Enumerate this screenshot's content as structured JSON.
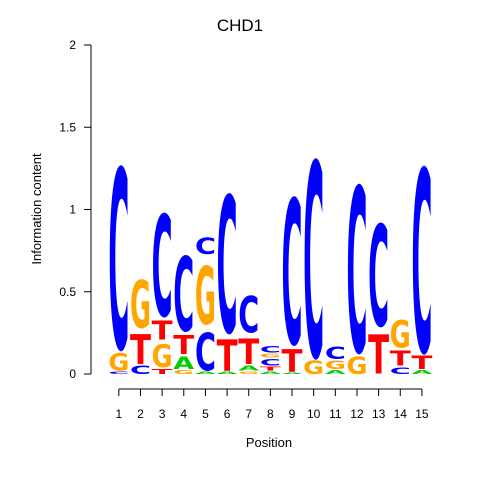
{
  "chart_data": {
    "type": "sequence-logo",
    "title": "CHD1",
    "xlabel": "Position",
    "ylabel": "Information content",
    "ylim": [
      0,
      2
    ],
    "yticks": [
      0,
      0.5,
      1,
      1.5,
      2
    ],
    "ytick_labels": [
      "0",
      "0.5",
      "1",
      "1.5",
      "2"
    ],
    "positions": [
      "1",
      "2",
      "3",
      "4",
      "5",
      "6",
      "7",
      "8",
      "9",
      "10",
      "11",
      "12",
      "13",
      "14",
      "15"
    ],
    "colors": {
      "A": "#00cc00",
      "C": "#0000ff",
      "G": "#ffa500",
      "T": "#ff0000"
    },
    "stacks": [
      [
        {
          "base": "C",
          "height": 0.02
        },
        {
          "base": "G",
          "height": 0.13
        },
        {
          "base": "C",
          "height": 1.33
        }
      ],
      [
        {
          "base": "C",
          "height": 0.06
        },
        {
          "base": "T",
          "height": 0.22
        },
        {
          "base": "G",
          "height": 0.35
        }
      ],
      [
        {
          "base": "T",
          "height": 0.04
        },
        {
          "base": "G",
          "height": 0.17
        },
        {
          "base": "T",
          "height": 0.14
        },
        {
          "base": "C",
          "height": 0.75
        }
      ],
      [
        {
          "base": "G",
          "height": 0.03
        },
        {
          "base": "A",
          "height": 0.09
        },
        {
          "base": "T",
          "height": 0.14
        },
        {
          "base": "C",
          "height": 0.55
        }
      ],
      [
        {
          "base": "A",
          "height": 0.02
        },
        {
          "base": "C",
          "height": 0.28
        },
        {
          "base": "G",
          "height": 0.43
        },
        {
          "base": "C",
          "height": 0.12
        }
      ],
      [
        {
          "base": "A",
          "height": 0.02
        },
        {
          "base": "T",
          "height": 0.23
        },
        {
          "base": "C",
          "height": 1.01
        }
      ],
      [
        {
          "base": "G",
          "height": 0.02
        },
        {
          "base": "A",
          "height": 0.04
        },
        {
          "base": "T",
          "height": 0.19
        },
        {
          "base": "C",
          "height": 0.27
        }
      ],
      [
        {
          "base": "A",
          "height": 0.02
        },
        {
          "base": "T",
          "height": 0.03
        },
        {
          "base": "C",
          "height": 0.05
        },
        {
          "base": "G",
          "height": 0.03
        },
        {
          "base": "C",
          "height": 0.05
        }
      ],
      [
        {
          "base": "A",
          "height": 0.01
        },
        {
          "base": "T",
          "height": 0.17
        },
        {
          "base": "C",
          "height": 1.07
        }
      ],
      [
        {
          "base": "G",
          "height": 0.1
        },
        {
          "base": "C",
          "height": 1.44
        }
      ],
      [
        {
          "base": "A",
          "height": 0.03
        },
        {
          "base": "G",
          "height": 0.06
        },
        {
          "base": "C",
          "height": 0.09
        }
      ],
      [
        {
          "base": "G",
          "height": 0.13
        },
        {
          "base": "C",
          "height": 1.22
        }
      ],
      [
        {
          "base": "T",
          "height": 0.29
        },
        {
          "base": "C",
          "height": 0.75
        }
      ],
      [
        {
          "base": "C",
          "height": 0.05
        },
        {
          "base": "T",
          "height": 0.11
        },
        {
          "base": "G",
          "height": 0.2
        }
      ],
      [
        {
          "base": "A",
          "height": 0.03
        },
        {
          "base": "T",
          "height": 0.1
        },
        {
          "base": "C",
          "height": 1.35
        }
      ]
    ]
  }
}
